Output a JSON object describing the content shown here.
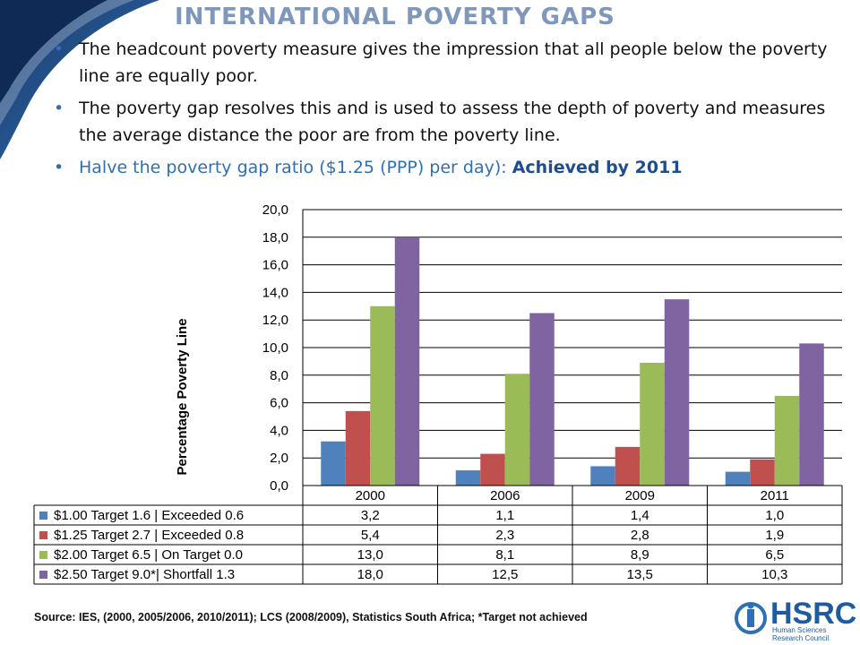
{
  "slide": {
    "title": "INTERNATIONAL POVERTY GAPS",
    "bullets": [
      {
        "text": "The headcount poverty measure gives the impression that all people below the poverty line are equally poor."
      },
      {
        "text": "The poverty gap resolves this and is used to assess the depth of poverty and measures the average distance the poor are from the poverty line."
      },
      {
        "text": "Halve the poverty gap ratio ($1.25 (PPP) per day): ",
        "emphasis": "Achieved by 2011"
      }
    ],
    "source": "Source: IES, (2000, 2005/2006, 2010/2011); LCS (2008/2009), Statistics South Africa; *Target not achieved",
    "logo": {
      "name": "HSRC",
      "subtitle_lines": [
        "Human Sciences",
        "Research Council"
      ]
    },
    "colors": {
      "title": "#7f97bb",
      "bullet_blue": "#2f6fb3",
      "accent_dark": "#1f3f78"
    }
  },
  "chart_data": {
    "type": "bar",
    "title": "",
    "xlabel": "",
    "ylabel": "Percentage Poverty Line",
    "ylim": [
      0,
      20
    ],
    "yticks": [
      "0,0",
      "2,0",
      "4,0",
      "6,0",
      "8,0",
      "10,0",
      "12,0",
      "14,0",
      "16,0",
      "18,0",
      "20,0"
    ],
    "grid": true,
    "legend": "data-table",
    "categories": [
      "2000",
      "2006",
      "2009",
      "2011"
    ],
    "series": [
      {
        "name": "$1.00  Target 1.6 | Exceeded 0.6",
        "color": "#4f81bd",
        "values": [
          3.2,
          1.1,
          1.4,
          1.0
        ],
        "labels": [
          "3,2",
          "1,1",
          "1,4",
          "1,0"
        ]
      },
      {
        "name": "$1.25  Target 2.7 | Exceeded 0.8",
        "color": "#c0504d",
        "values": [
          5.4,
          2.3,
          2.8,
          1.9
        ],
        "labels": [
          "5,4",
          "2,3",
          "2,8",
          "1,9"
        ]
      },
      {
        "name": "$2.00  Target 6.5 | On Target 0.0",
        "color": "#9bbb59",
        "values": [
          13.0,
          8.1,
          8.9,
          6.5
        ],
        "labels": [
          "13,0",
          "8,1",
          "8,9",
          "6,5"
        ]
      },
      {
        "name": "$2.50  Target 9.0*| Shortfall 1.3",
        "color": "#8064a2",
        "values": [
          18.0,
          12.5,
          13.5,
          10.3
        ],
        "labels": [
          "18,0",
          "12,5",
          "13,5",
          "10,3"
        ]
      }
    ]
  }
}
